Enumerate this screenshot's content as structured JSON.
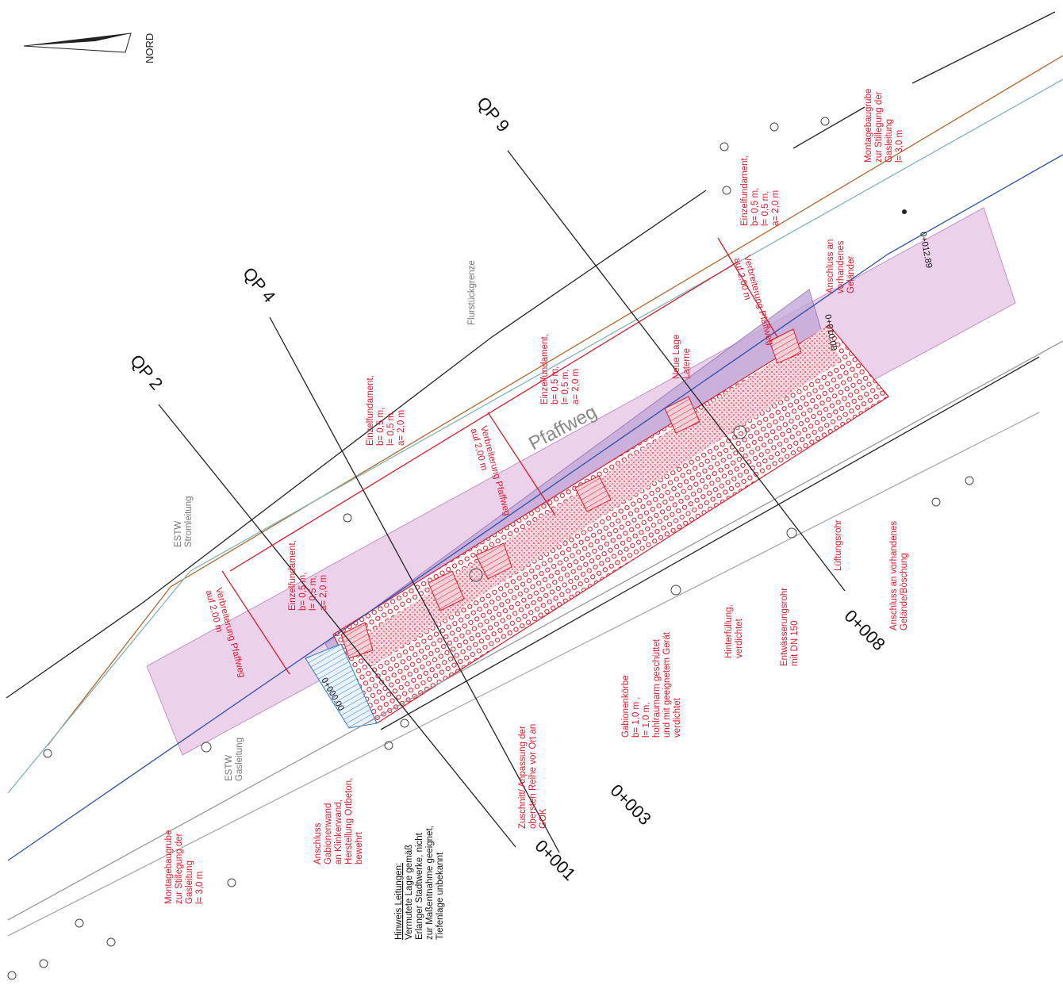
{
  "north_label": "NORD",
  "road_label": "Pfaffweg",
  "sections": [
    "QP 9",
    "QP 4",
    "QP 2"
  ],
  "stations": [
    "0+012.89",
    "0+010.00",
    "0+000.00",
    "0+008",
    "0+003",
    "0+001"
  ],
  "notes": [
    {
      "lines": [
        "Flurstückgrenze"
      ]
    },
    {
      "lines": [
        "ESTW",
        "Stromleitung"
      ]
    },
    {
      "lines": [
        "ESTW",
        "Gasleitung"
      ]
    },
    {
      "lines": [
        "Einzelfundament,",
        "b= 0,5 m,",
        "l= 0,5 m,",
        "a= 2,0 m"
      ]
    },
    {
      "lines": [
        "Einzelfundament,",
        "b= 0,5 m,",
        "l= 0,5 m,",
        "a= 2,0 m"
      ]
    },
    {
      "lines": [
        "Einzelfundament,",
        "b= 0,5 m,",
        "l= 0,5 m,",
        "a= 2,0 m"
      ]
    },
    {
      "lines": [
        "Einzelfundament,",
        "b= 0,5 m,",
        "l= 0,5 m,",
        "a= 2,0 m"
      ]
    },
    {
      "lines": [
        "Verbreiterung Pfaffweg",
        "auf 2,00 m"
      ]
    },
    {
      "lines": [
        "Verbreiterung Pfaffweg",
        "auf 2,00 m"
      ]
    },
    {
      "lines": [
        "Verbreiterung Pfaffweg",
        "auf 2,00 m"
      ]
    },
    {
      "lines": [
        "Neue Lage",
        "Laterne"
      ]
    },
    {
      "lines": [
        "Anschluss an",
        "vorhandenes",
        "Geländer"
      ]
    },
    {
      "lines": [
        "Montagebaugrube",
        "zur Stillegung der",
        "Gasleitung",
        "l= 3,0 m"
      ]
    },
    {
      "lines": [
        "Montagebaugrube",
        "zur Stillegung der",
        "Gasleitung",
        "l= 3,0 m"
      ]
    },
    {
      "lines": [
        "Lüftungsrohr"
      ]
    },
    {
      "lines": [
        "Anschluss an vorhandenes",
        "Gelände/Böschung"
      ]
    },
    {
      "lines": [
        "Entwässerungsrohr",
        "mit DN 150"
      ]
    },
    {
      "lines": [
        "Hinterfüllung,",
        "verdichtet"
      ]
    },
    {
      "lines": [
        "Gabionenkörbe",
        "b= 1,0 m ,",
        "l= 1,0 m,",
        "hohlraumarm geschüttet",
        "und mit geeignetem Gerät",
        "verdichtet"
      ]
    },
    {
      "lines": [
        "Zuschnitt/ Anpassung der",
        "obersten Reihe vor Ort an",
        "GOK"
      ]
    },
    {
      "lines": [
        "Anschluss",
        "Gabionenwand",
        "an Klinkerwand,",
        "Herstellung Ortbeton,",
        "bewehrt"
      ]
    },
    {
      "lines": [
        "Hinweis Leitungen:",
        "Vermutete Lage gemäß",
        "Erlanger Stadtwerke, nicht",
        "zur Maßentnahme geeignet,",
        "Tiefenlage unbekannt"
      ]
    }
  ]
}
